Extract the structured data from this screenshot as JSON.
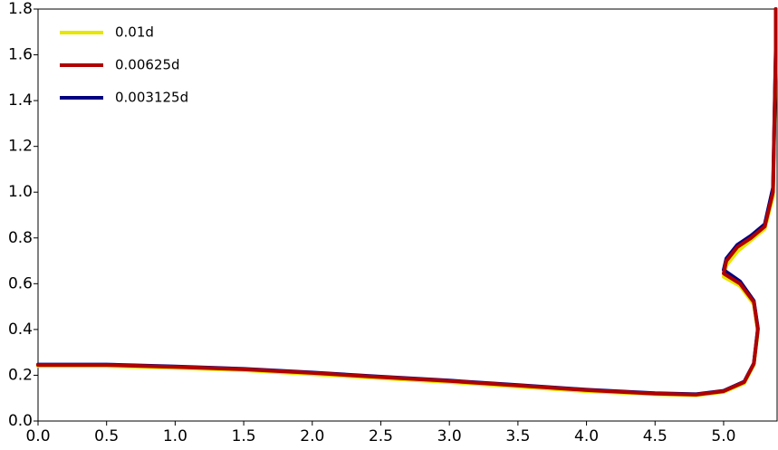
{
  "chart_data": {
    "type": "line",
    "x": [
      0,
      0.5,
      1.0,
      1.5,
      2.0,
      2.5,
      3.0,
      3.5,
      4.0,
      4.5,
      4.8,
      5.0,
      5.15,
      5.22,
      5.25,
      5.22,
      5.12,
      5.0,
      5.02,
      5.1,
      5.2,
      5.3,
      5.36,
      5.37,
      5.38,
      5.38
    ],
    "series": [
      {
        "name": "0.01d",
        "color": "#e6e600",
        "values": [
          0.24,
          0.24,
          0.232,
          0.222,
          0.205,
          0.187,
          0.17,
          0.15,
          0.13,
          0.117,
          0.112,
          0.127,
          0.165,
          0.245,
          0.39,
          0.51,
          0.59,
          0.63,
          0.68,
          0.74,
          0.79,
          0.84,
          0.98,
          1.28,
          1.58,
          1.8
        ]
      },
      {
        "name": "0.00625d",
        "color": "#b00000",
        "values": [
          0.245,
          0.245,
          0.236,
          0.226,
          0.21,
          0.192,
          0.175,
          0.155,
          0.135,
          0.12,
          0.115,
          0.13,
          0.17,
          0.25,
          0.4,
          0.52,
          0.6,
          0.645,
          0.7,
          0.76,
          0.8,
          0.85,
          1.0,
          1.3,
          1.6,
          1.8
        ]
      },
      {
        "name": "0.003125d",
        "color": "#000080",
        "values": [
          0.247,
          0.247,
          0.238,
          0.228,
          0.212,
          0.194,
          0.177,
          0.157,
          0.137,
          0.122,
          0.117,
          0.132,
          0.172,
          0.252,
          0.405,
          0.525,
          0.61,
          0.66,
          0.71,
          0.77,
          0.81,
          0.86,
          1.02,
          1.32,
          1.62,
          1.8
        ]
      }
    ],
    "xlim": [
      0,
      5.39
    ],
    "ylim": [
      0,
      1.8
    ],
    "xticks": [
      {
        "value": 0,
        "label": "0.0"
      },
      0.5,
      {
        "value": 1,
        "label": "1.0"
      },
      1.5,
      {
        "value": 2,
        "label": "2.0"
      },
      2.5,
      {
        "value": 3,
        "label": "3.0"
      },
      3.5,
      {
        "value": 4,
        "label": "4.0"
      },
      4.5,
      {
        "value": 5,
        "label": "5.0"
      }
    ],
    "yticks": [
      {
        "value": 0,
        "label": "0.0"
      },
      0.2,
      0.4,
      0.6,
      0.8,
      {
        "value": 1,
        "label": "1.0"
      },
      1.2,
      1.4,
      1.6,
      1.8
    ]
  }
}
